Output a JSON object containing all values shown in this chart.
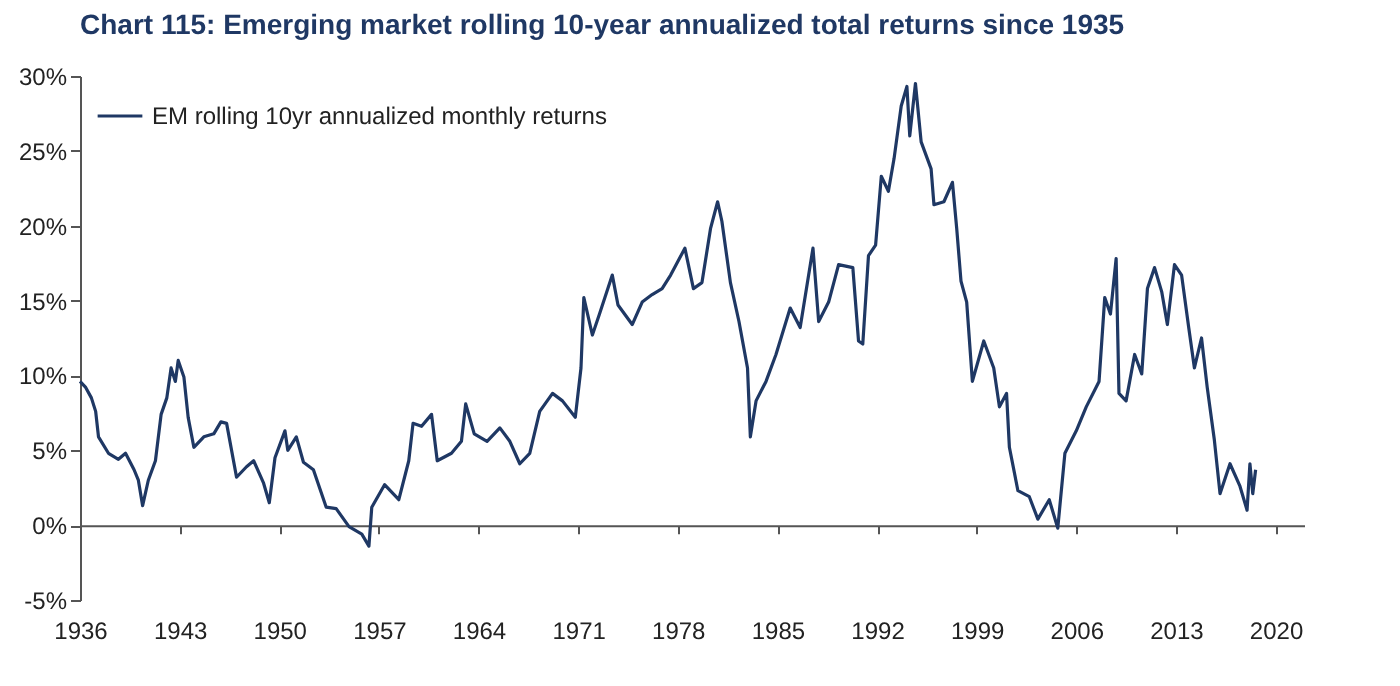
{
  "chart_data": {
    "type": "line",
    "title": "Chart 115: Emerging market rolling 10-year annualized total returns since 1935",
    "xlim": [
      1936,
      2022
    ],
    "xticks": [
      1936,
      1943,
      1950,
      1957,
      1964,
      1971,
      1978,
      1985,
      1992,
      1999,
      2006,
      2013,
      2020
    ],
    "ylim": [
      -5,
      30
    ],
    "yticks": [
      {
        "value": -5,
        "label": "-5%"
      },
      {
        "value": 0,
        "label": "0%"
      },
      {
        "value": 5,
        "label": "5%"
      },
      {
        "value": 10,
        "label": "10%"
      },
      {
        "value": 15,
        "label": "15%"
      },
      {
        "value": 20,
        "label": "20%"
      },
      {
        "value": 25,
        "label": "25%"
      },
      {
        "value": 30,
        "label": "30%"
      }
    ],
    "legend": "top left",
    "line_style": "solid",
    "series": [
      {
        "name": "EM rolling 10yr annualized monthly returns",
        "color": "#1f3864",
        "x": [
          1936.0,
          1936.4,
          1936.8,
          1937.1,
          1937.3,
          1938.0,
          1938.7,
          1939.2,
          1939.8,
          1940.1,
          1940.4,
          1940.8,
          1941.3,
          1941.7,
          1942.1,
          1942.4,
          1942.7,
          1942.9,
          1943.3,
          1943.6,
          1944.0,
          1944.7,
          1945.4,
          1945.9,
          1946.3,
          1947.0,
          1947.7,
          1948.2,
          1948.9,
          1949.3,
          1949.7,
          1950.4,
          1950.6,
          1951.2,
          1951.7,
          1952.4,
          1953.3,
          1954.0,
          1954.9,
          1955.8,
          1956.3,
          1956.5,
          1957.4,
          1958.4,
          1959.1,
          1959.4,
          1960.0,
          1960.7,
          1961.1,
          1962.1,
          1962.8,
          1963.1,
          1963.7,
          1964.6,
          1965.5,
          1966.2,
          1966.9,
          1967.6,
          1968.3,
          1969.2,
          1969.9,
          1970.8,
          1971.2,
          1971.4,
          1972.0,
          1972.5,
          1973.4,
          1973.8,
          1974.8,
          1975.5,
          1976.2,
          1976.9,
          1977.5,
          1978.5,
          1979.1,
          1979.7,
          1980.3,
          1980.8,
          1981.1,
          1981.7,
          1982.3,
          1982.9,
          1983.1,
          1983.5,
          1984.2,
          1984.9,
          1985.9,
          1986.6,
          1987.5,
          1987.9,
          1988.6,
          1989.3,
          1990.3,
          1990.7,
          1991.0,
          1991.4,
          1991.9,
          1992.3,
          1992.8,
          1993.2,
          1993.7,
          1994.1,
          1994.3,
          1994.7,
          1995.1,
          1995.8,
          1996.0,
          1996.7,
          1997.3,
          1997.6,
          1997.9,
          1998.3,
          1998.7,
          1999.5,
          2000.2,
          2000.6,
          2001.1,
          2001.3,
          2001.9,
          2002.7,
          2003.3,
          2004.1,
          2004.7,
          2005.2,
          2006.0,
          2006.7,
          2007.6,
          2008.0,
          2008.4,
          2008.8,
          2009.0,
          2009.5,
          2010.1,
          2010.6,
          2011.0,
          2011.5,
          2012.0,
          2012.4,
          2012.9,
          2013.4,
          2013.9,
          2014.3,
          2014.8,
          2015.2,
          2015.7,
          2016.1,
          2016.8,
          2017.5,
          2018.0,
          2018.2,
          2018.4,
          2018.6
        ],
        "values": [
          9.6,
          9.2,
          8.5,
          7.6,
          5.9,
          4.8,
          4.4,
          4.8,
          3.7,
          3.0,
          1.3,
          3.0,
          4.3,
          7.4,
          8.5,
          10.5,
          9.6,
          11.0,
          9.9,
          7.2,
          5.2,
          5.9,
          6.1,
          6.9,
          6.8,
          3.2,
          3.9,
          4.3,
          2.8,
          1.5,
          4.5,
          6.3,
          5.0,
          5.9,
          4.2,
          3.7,
          1.2,
          1.1,
          -0.1,
          -0.6,
          -1.4,
          1.2,
          2.7,
          1.7,
          4.3,
          6.8,
          6.6,
          7.4,
          4.3,
          4.8,
          5.6,
          8.1,
          6.1,
          5.6,
          6.5,
          5.6,
          4.1,
          4.8,
          7.6,
          8.8,
          8.3,
          7.2,
          10.5,
          15.2,
          12.7,
          14.1,
          16.7,
          14.7,
          13.4,
          14.9,
          15.4,
          15.8,
          16.7,
          18.5,
          15.8,
          16.2,
          19.8,
          21.6,
          20.3,
          16.2,
          13.6,
          10.5,
          5.9,
          8.3,
          9.6,
          11.4,
          14.5,
          13.2,
          18.5,
          13.6,
          14.9,
          17.4,
          17.2,
          12.3,
          12.1,
          18.0,
          18.7,
          23.3,
          22.3,
          24.5,
          28.0,
          29.3,
          26.0,
          29.5,
          25.6,
          23.8,
          21.4,
          21.6,
          22.9,
          19.8,
          16.3,
          14.9,
          9.6,
          12.3,
          10.5,
          7.9,
          8.8,
          5.2,
          2.3,
          1.9,
          0.4,
          1.7,
          -0.2,
          4.8,
          6.3,
          7.9,
          9.6,
          15.2,
          14.1,
          17.8,
          8.8,
          8.3,
          11.4,
          10.1,
          15.8,
          17.2,
          15.6,
          13.4,
          17.4,
          16.7,
          13.2,
          10.5,
          12.5,
          9.2,
          5.7,
          2.1,
          4.1,
          2.6,
          1.0,
          4.1,
          2.1,
          3.7
        ]
      }
    ]
  }
}
